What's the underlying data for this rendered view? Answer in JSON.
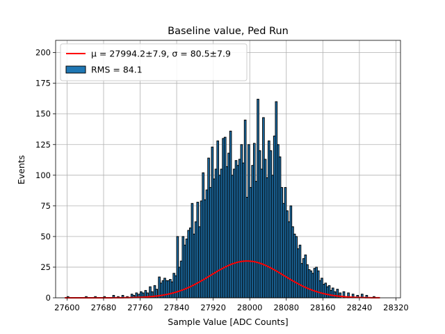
{
  "chart_data": {
    "type": "bar",
    "title": "Baseline value, Ped Run",
    "xlabel": "Sample Value [ADC Counts]",
    "ylabel": "Events",
    "xlim": [
      27575,
      28330
    ],
    "ylim": [
      0,
      210
    ],
    "xticks": [
      27600,
      27680,
      27760,
      27840,
      27920,
      28000,
      28080,
      28160,
      28240,
      28320
    ],
    "yticks": [
      0,
      25,
      50,
      75,
      100,
      125,
      150,
      175,
      200
    ],
    "grid": true,
    "legend": {
      "position": "top-left",
      "fit_label": "μ = 27994.2±7.9, σ = 80.5±7.9",
      "hist_label": "RMS = 84.1"
    },
    "colors": {
      "bars": "#1f77b4",
      "bar_edge": "#000000",
      "fit": "#ff0000",
      "grid": "#b0b0b0"
    },
    "histogram": {
      "bin_width": 4,
      "bins": [
        [
          27600,
          1
        ],
        [
          27640,
          1
        ],
        [
          27660,
          1
        ],
        [
          27680,
          1
        ],
        [
          27700,
          2
        ],
        [
          27710,
          1
        ],
        [
          27720,
          2
        ],
        [
          27730,
          1
        ],
        [
          27740,
          3
        ],
        [
          27744,
          2
        ],
        [
          27750,
          4
        ],
        [
          27756,
          3
        ],
        [
          27760,
          5
        ],
        [
          27764,
          4
        ],
        [
          27770,
          6
        ],
        [
          27774,
          4
        ],
        [
          27780,
          9
        ],
        [
          27784,
          5
        ],
        [
          27790,
          10
        ],
        [
          27794,
          7
        ],
        [
          27800,
          17
        ],
        [
          27804,
          12
        ],
        [
          27808,
          14
        ],
        [
          27812,
          16
        ],
        [
          27816,
          14
        ],
        [
          27820,
          14
        ],
        [
          27824,
          15
        ],
        [
          27828,
          13
        ],
        [
          27832,
          20
        ],
        [
          27836,
          18
        ],
        [
          27840,
          50
        ],
        [
          27844,
          25
        ],
        [
          27848,
          30
        ],
        [
          27852,
          50
        ],
        [
          27856,
          43
        ],
        [
          27860,
          48
        ],
        [
          27864,
          55
        ],
        [
          27868,
          57
        ],
        [
          27872,
          77
        ],
        [
          27876,
          52
        ],
        [
          27880,
          62
        ],
        [
          27884,
          78
        ],
        [
          27888,
          58
        ],
        [
          27892,
          79
        ],
        [
          27896,
          102
        ],
        [
          27900,
          80
        ],
        [
          27904,
          88
        ],
        [
          27908,
          114
        ],
        [
          27912,
          90
        ],
        [
          27916,
          123
        ],
        [
          27920,
          97
        ],
        [
          27924,
          105
        ],
        [
          27928,
          128
        ],
        [
          27932,
          100
        ],
        [
          27936,
          105
        ],
        [
          27940,
          130
        ],
        [
          27944,
          131
        ],
        [
          27948,
          107
        ],
        [
          27952,
          118
        ],
        [
          27956,
          136
        ],
        [
          27960,
          100
        ],
        [
          27964,
          105
        ],
        [
          27968,
          112
        ],
        [
          27972,
          108
        ],
        [
          27976,
          113
        ],
        [
          27980,
          125
        ],
        [
          27984,
          110
        ],
        [
          27988,
          145
        ],
        [
          27992,
          82
        ],
        [
          27996,
          125
        ],
        [
          28000,
          90
        ],
        [
          28004,
          108
        ],
        [
          28008,
          126
        ],
        [
          28012,
          95
        ],
        [
          28016,
          162
        ],
        [
          28020,
          120
        ],
        [
          28024,
          105
        ],
        [
          28028,
          147
        ],
        [
          28032,
          113
        ],
        [
          28036,
          98
        ],
        [
          28040,
          128
        ],
        [
          28044,
          120
        ],
        [
          28048,
          100
        ],
        [
          28052,
          132
        ],
        [
          28056,
          160
        ],
        [
          28060,
          125
        ],
        [
          28064,
          115
        ],
        [
          28068,
          90
        ],
        [
          28072,
          77
        ],
        [
          28076,
          90
        ],
        [
          28080,
          71
        ],
        [
          28084,
          62
        ],
        [
          28088,
          75
        ],
        [
          28092,
          58
        ],
        [
          28096,
          52
        ],
        [
          28100,
          50
        ],
        [
          28104,
          40
        ],
        [
          28108,
          43
        ],
        [
          28112,
          28
        ],
        [
          28116,
          32
        ],
        [
          28120,
          35
        ],
        [
          28124,
          27
        ],
        [
          28128,
          23
        ],
        [
          28132,
          22
        ],
        [
          28136,
          20
        ],
        [
          28140,
          24
        ],
        [
          28144,
          25
        ],
        [
          28148,
          22
        ],
        [
          28152,
          14
        ],
        [
          28156,
          16
        ],
        [
          28160,
          11
        ],
        [
          28164,
          12
        ],
        [
          28168,
          9
        ],
        [
          28172,
          10
        ],
        [
          28176,
          6
        ],
        [
          28180,
          8
        ],
        [
          28184,
          5
        ],
        [
          28190,
          7
        ],
        [
          28196,
          4
        ],
        [
          28204,
          5
        ],
        [
          28214,
          4
        ],
        [
          28224,
          3
        ],
        [
          28234,
          2
        ],
        [
          28244,
          3
        ],
        [
          28254,
          2
        ],
        [
          28270,
          1
        ]
      ]
    },
    "fit": {
      "type": "gaussian",
      "mu": 27994.2,
      "sigma": 80.5,
      "amplitude": 30,
      "x_range": [
        27595,
        28285
      ]
    }
  }
}
